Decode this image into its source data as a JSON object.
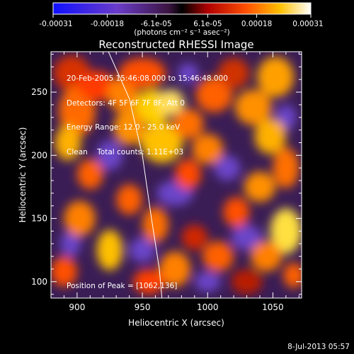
{
  "chart_data": {
    "type": "heatmap",
    "title": "Reconstructed RHESSI Image",
    "xlabel": "Heliocentric X (arcsec)",
    "ylabel": "Heliocentric Y (arcsec)",
    "xlim": [
      880,
      1072
    ],
    "ylim": [
      87,
      282
    ],
    "x_ticks": [
      900,
      950,
      1000,
      1050
    ],
    "y_ticks": [
      100,
      150,
      200,
      250
    ],
    "colorbar": {
      "unit_label": "(photons cm⁻² s⁻¹ asec⁻²)",
      "range": [
        -0.00031,
        0.00031
      ],
      "ticks": [
        "-0.00031",
        "-0.00018",
        "-6.1e-05",
        "6.1e-05",
        "0.00018",
        "0.00031"
      ]
    },
    "annotations": [
      "20-Feb-2005 15:46:08.000 to 15:46:48.000",
      "Detectors: 4F 5F 6F 7F 8F, Att 0",
      "Energy Range: 12.0 - 25.0 keV",
      "Clean    Total counts: 1.11E+03"
    ],
    "peak_label": "Position of Peak = [1062,136]",
    "peak": {
      "x": 1062,
      "y": 136
    },
    "limb_curve": [
      {
        "x": 924,
        "y": 282
      },
      {
        "x": 940,
        "y": 245
      },
      {
        "x": 950,
        "y": 200
      },
      {
        "x": 957,
        "y": 150
      },
      {
        "x": 963,
        "y": 110
      },
      {
        "x": 965,
        "y": 87
      }
    ]
  },
  "footer": {
    "date": "8-Jul-2013 05:57"
  }
}
